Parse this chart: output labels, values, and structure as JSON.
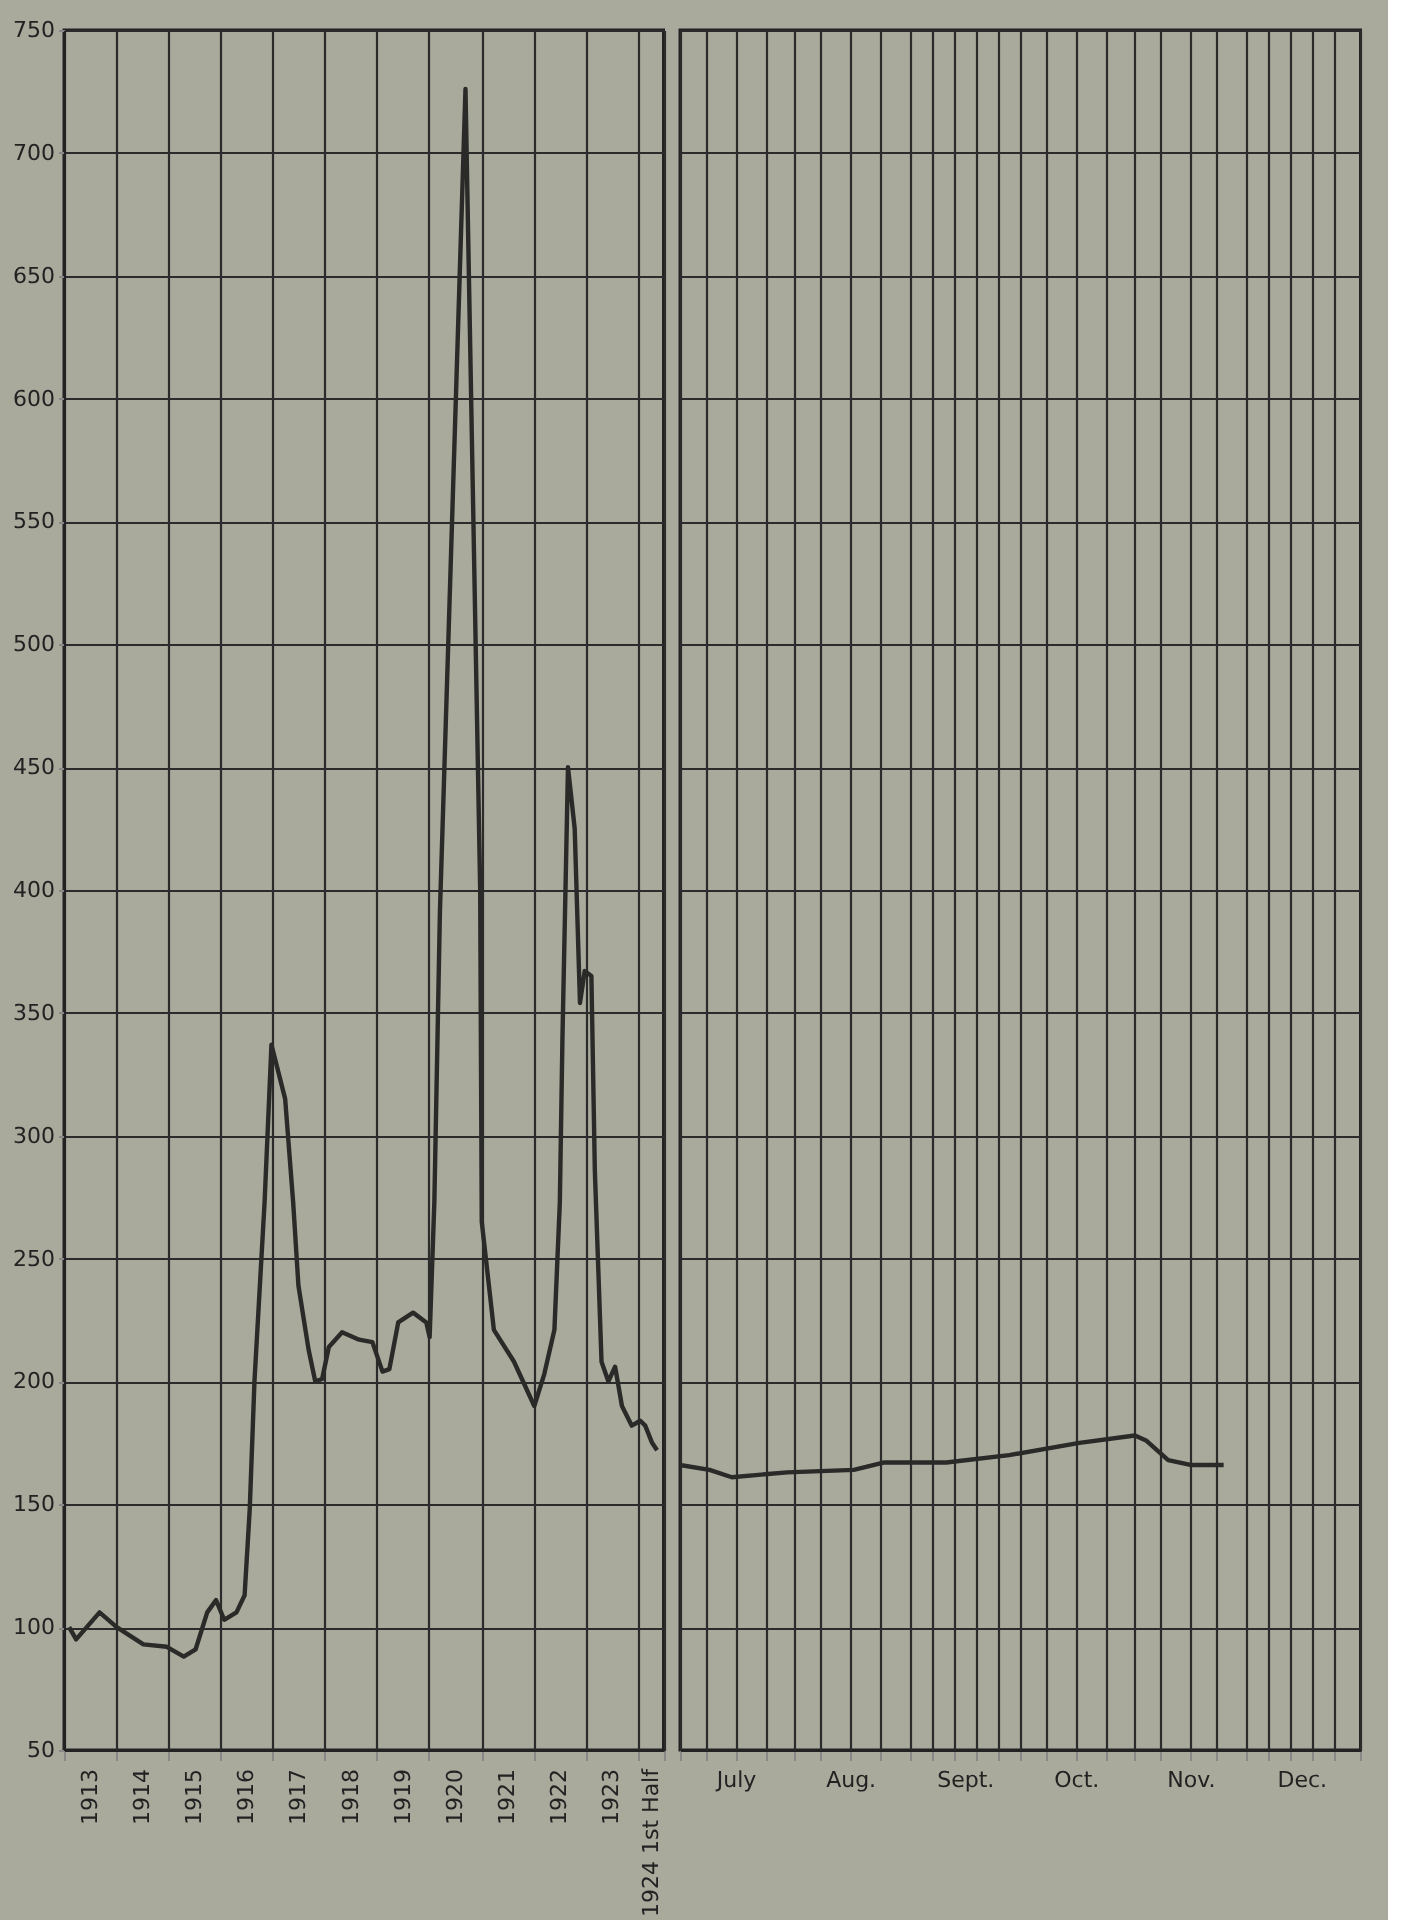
{
  "chart_data": [
    {
      "type": "line",
      "color": "#2a2a28",
      "x": [
        "1913-02-06",
        "1913-03-27",
        "1913-09-07",
        "1914-01-05",
        "1914-07-11",
        "1914-12-22",
        "1915-04-20",
        "1915-07-12",
        "1915-10-01",
        "1915-12-02",
        "1916-01-28",
        "1916-04-23",
        "1916-06-19",
        "1916-07-25",
        "1916-08-27",
        "1916-11-06",
        "1916-12-24",
        "1917-03-30",
        "1917-05-25",
        "1917-07-01",
        "1917-09-10",
        "1917-10-27",
        "1917-12-14",
        "1918-01-30",
        "1918-05-03",
        "1918-08-30",
        "1918-12-01",
        "1919-02-10",
        "1919-03-30",
        "1919-05-31",
        "1919-09-12",
        "1919-12-14",
        "1920-01-06",
        "1920-02-08",
        "1920-03-18",
        "1920-09-13",
        "1920-12-25",
        "1921-01-05",
        "1921-03-31",
        "1921-08-19",
        "1922-01-08",
        "1922-03-19",
        "1922-05-29",
        "1922-07-06",
        "1922-07-24",
        "1922-09-01",
        "1922-10-18",
        "1922-11-24",
        "1922-12-27",
        "1923-02-12",
        "1923-03-08",
        "1923-04-24",
        "1923-06-11",
        "1923-07-28",
        "1923-09-14",
        "1923-11-22",
        "1924-01-20",
        "1924-02-24",
        "1924-04-12",
        "1924-05-17"
      ],
      "values": [
        100,
        95,
        106,
        100,
        93,
        92,
        88,
        91,
        106,
        111,
        103,
        106,
        113,
        148,
        200,
        273,
        337,
        315,
        273,
        239,
        213,
        200,
        201,
        214,
        220,
        217,
        216,
        204,
        205,
        224,
        228,
        224,
        218,
        273,
        391,
        726,
        400,
        265,
        221,
        208,
        190,
        203,
        221,
        273,
        339,
        450,
        425,
        354,
        367,
        365,
        286,
        208,
        200,
        206,
        190,
        182,
        184,
        182,
        175,
        172
      ],
      "xlim": [
        "1913-01-01",
        "1924-07-01"
      ],
      "ylim": [
        50,
        750
      ],
      "yticks": [
        50,
        100,
        150,
        200,
        250,
        300,
        350,
        400,
        450,
        500,
        550,
        600,
        650,
        700,
        750
      ],
      "xticks": [
        {
          "value": "1913-01-01",
          "label": null
        },
        {
          "value": "1913-07-01",
          "label": "1913"
        },
        {
          "value": "1914-01-01",
          "label": null
        },
        {
          "value": "1914-07-01",
          "label": "1914"
        },
        {
          "value": "1915-01-01",
          "label": null
        },
        {
          "value": "1915-07-01",
          "label": "1915"
        },
        {
          "value": "1916-01-01",
          "label": null
        },
        {
          "value": "1916-07-01",
          "label": "1916"
        },
        {
          "value": "1917-01-01",
          "label": null
        },
        {
          "value": "1917-07-01",
          "label": "1917"
        },
        {
          "value": "1918-01-01",
          "label": null
        },
        {
          "value": "1918-07-01",
          "label": "1918"
        },
        {
          "value": "1919-01-01",
          "label": null
        },
        {
          "value": "1919-07-01",
          "label": "1919"
        },
        {
          "value": "1920-01-01",
          "label": null
        },
        {
          "value": "1920-07-01",
          "label": "1920"
        },
        {
          "value": "1921-01-01",
          "label": null
        },
        {
          "value": "1921-07-01",
          "label": "1921"
        },
        {
          "value": "1922-01-01",
          "label": null
        },
        {
          "value": "1922-07-01",
          "label": "1922"
        },
        {
          "value": "1923-01-01",
          "label": null
        },
        {
          "value": "1923-07-01",
          "label": "1923"
        },
        {
          "value": "1924-01-01",
          "label": null
        },
        {
          "value": "1924-04-01",
          "label": "1924 1st Half"
        },
        {
          "value": "1924-07-01",
          "label": null
        }
      ],
      "grid": true,
      "line_style": "solid"
    },
    {
      "type": "line",
      "color": "#2a2a28",
      "x": [
        "1924-07-01",
        "1924-07-09",
        "1924-07-15",
        "1924-07-30",
        "1924-08-17",
        "1924-08-25",
        "1924-09-11",
        "1924-09-28",
        "1924-10-17",
        "1924-11-01",
        "1924-11-04",
        "1924-11-10",
        "1924-11-16",
        "1924-11-25"
      ],
      "values": [
        166,
        164,
        161,
        163,
        164,
        167,
        167,
        170,
        175,
        178,
        176,
        168,
        166,
        166
      ],
      "xlim": [
        "1924-07-01",
        "1925-01-01"
      ],
      "ylim": [
        50,
        750
      ],
      "yticks": [
        50,
        100,
        150,
        200,
        250,
        300,
        350,
        400,
        450,
        500,
        550,
        600,
        650,
        700,
        750
      ],
      "xticks": [
        {
          "value": "1924-07-01",
          "label": null
        },
        {
          "value": "1924-07-08",
          "label": null
        },
        {
          "value": "1924-07-16",
          "label": "July"
        },
        {
          "value": "1924-07-24",
          "label": null
        },
        {
          "value": "1924-08-01",
          "label": null
        },
        {
          "value": "1924-08-08",
          "label": null
        },
        {
          "value": "1924-08-16",
          "label": "Aug."
        },
        {
          "value": "1924-08-24",
          "label": null
        },
        {
          "value": "1924-09-01",
          "label": null
        },
        {
          "value": "1924-09-07",
          "label": null
        },
        {
          "value": "1924-09-13",
          "label": null
        },
        {
          "value": "1924-09-16",
          "label": "Sept."
        },
        {
          "value": "1924-09-19",
          "label": null
        },
        {
          "value": "1924-09-25",
          "label": null
        },
        {
          "value": "1924-10-01",
          "label": null
        },
        {
          "value": "1924-10-08",
          "label": null
        },
        {
          "value": "1924-10-16",
          "label": "Oct."
        },
        {
          "value": "1924-10-24",
          "label": null
        },
        {
          "value": "1924-11-01",
          "label": null
        },
        {
          "value": "1924-11-08",
          "label": null
        },
        {
          "value": "1924-11-16",
          "label": "Nov."
        },
        {
          "value": "1924-11-23",
          "label": null
        },
        {
          "value": "1924-12-01",
          "label": null
        },
        {
          "value": "1924-12-07",
          "label": null
        },
        {
          "value": "1924-12-13",
          "label": null
        },
        {
          "value": "1924-12-16",
          "label": "Dec."
        },
        {
          "value": "1924-12-19",
          "label": null
        },
        {
          "value": "1924-12-25",
          "label": null
        },
        {
          "value": "1925-01-01",
          "label": null
        }
      ],
      "grid": true,
      "line_style": "solid",
      "tick_labels": "x"
    }
  ]
}
